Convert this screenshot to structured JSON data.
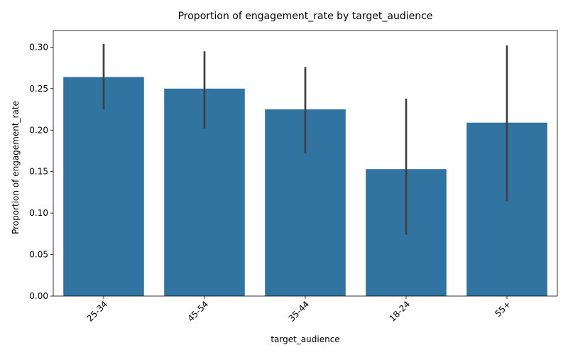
{
  "chart_data": {
    "type": "bar",
    "title": "Proportion of engagement_rate by target_audience",
    "xlabel": "target_audience",
    "ylabel": "Proportion of engagement_rate",
    "categories": [
      "25-34",
      "45-54",
      "35-44",
      "18-24",
      "55+"
    ],
    "values": [
      0.264,
      0.25,
      0.225,
      0.153,
      0.209
    ],
    "error_low": [
      0.225,
      0.202,
      0.172,
      0.074,
      0.114
    ],
    "error_high": [
      0.304,
      0.295,
      0.276,
      0.238,
      0.302
    ],
    "ylim": [
      0,
      0.32
    ],
    "yticks": [
      "0.00",
      "0.05",
      "0.10",
      "0.15",
      "0.20",
      "0.25",
      "0.30"
    ],
    "ytick_values": [
      0,
      0.05,
      0.1,
      0.15,
      0.2,
      0.25,
      0.3
    ],
    "x_tick_rotation": 45,
    "grid": false,
    "bar_color": "#3274a1",
    "error_color": "#404040"
  }
}
